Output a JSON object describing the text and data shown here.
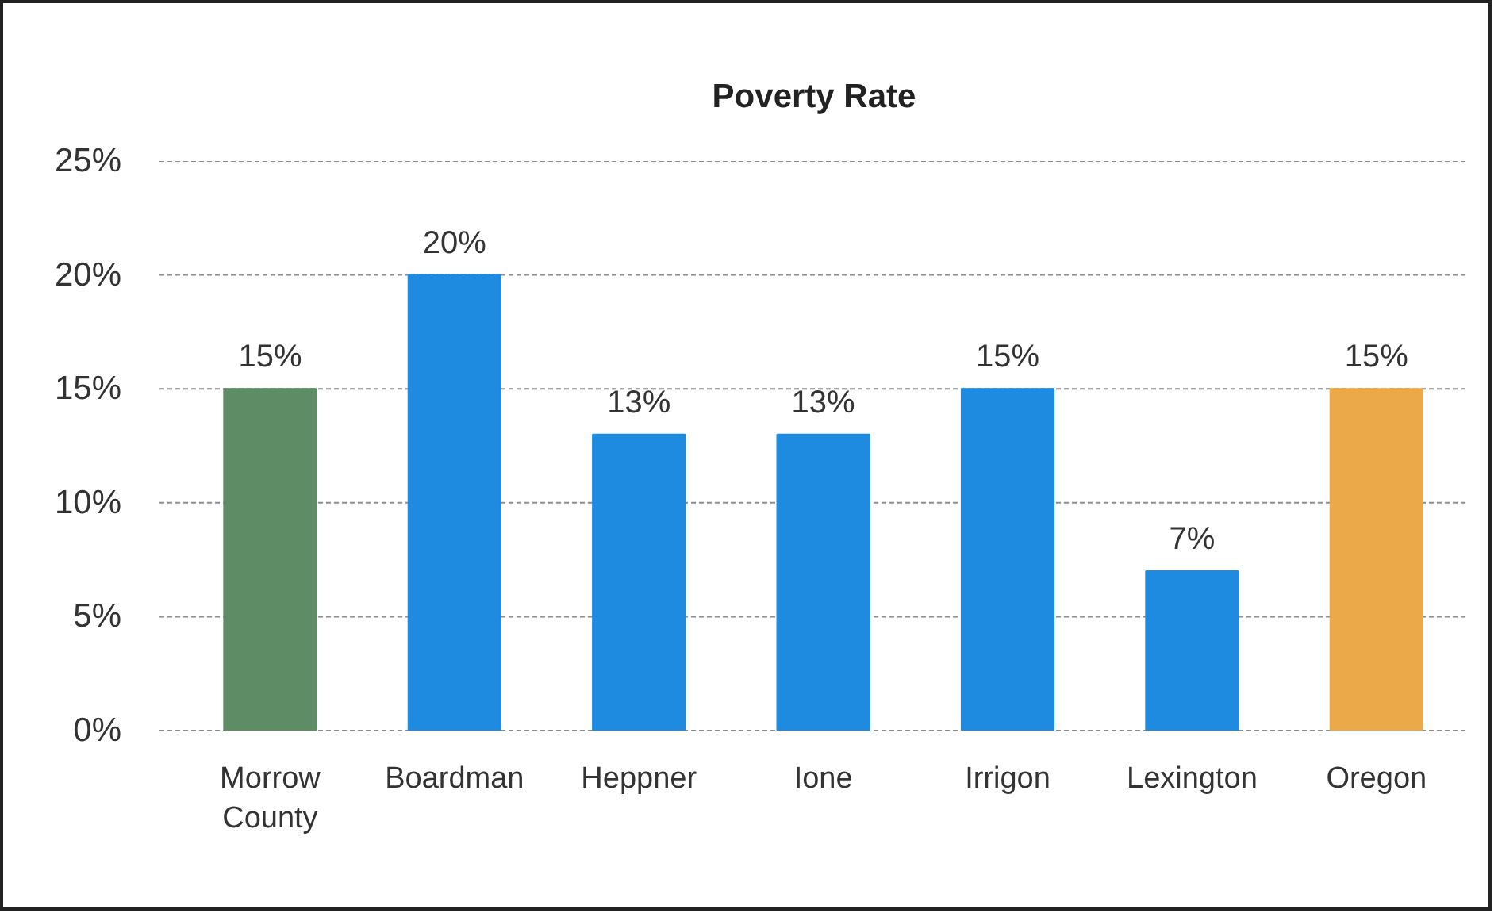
{
  "chart_data": {
    "type": "bar",
    "title": "Poverty Rate",
    "categories": [
      "Morrow County",
      "Boardman",
      "Heppner",
      "Ione",
      "Irrigon",
      "Lexington",
      "Oregon"
    ],
    "values": [
      15,
      20,
      13,
      13,
      15,
      7,
      15
    ],
    "value_labels": [
      "15%",
      "20%",
      "13%",
      "13%",
      "15%",
      "7%",
      "15%"
    ],
    "colors": [
      "#5e8c64",
      "#1e8be0",
      "#1e8be0",
      "#1e8be0",
      "#1e8be0",
      "#1e8be0",
      "#eba94a"
    ],
    "ylim": [
      0,
      25
    ],
    "yticks": [
      {
        "value": 0,
        "label": "0%"
      },
      {
        "value": 5,
        "label": "5%"
      },
      {
        "value": 10,
        "label": "10%"
      },
      {
        "value": 15,
        "label": "15%"
      },
      {
        "value": 20,
        "label": "20%"
      },
      {
        "value": 25,
        "label": "25%"
      }
    ],
    "grid": "y"
  }
}
